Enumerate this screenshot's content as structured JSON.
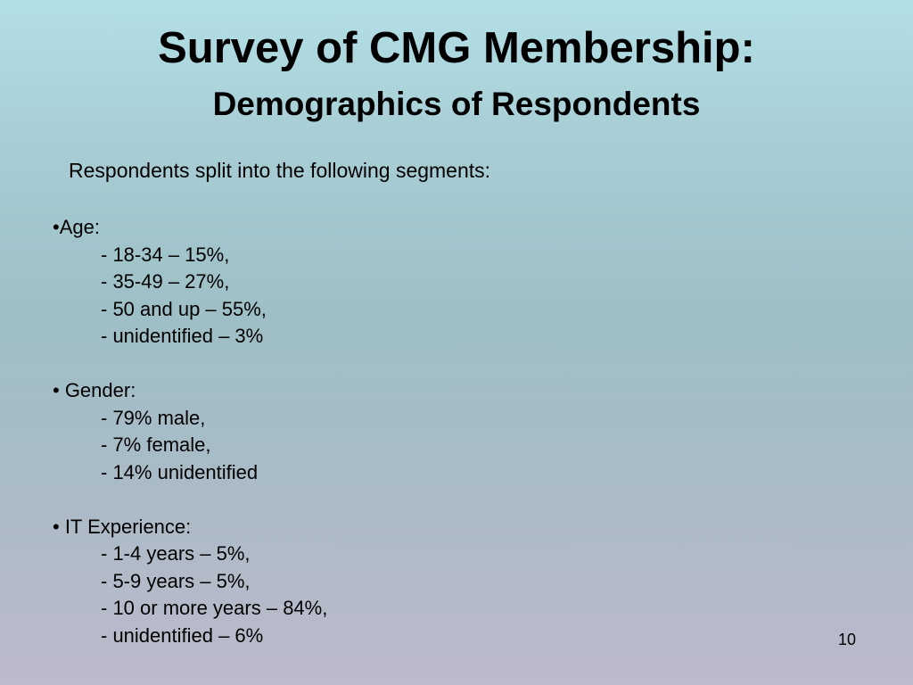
{
  "slide": {
    "title": "Survey of CMG Membership:",
    "subtitle": "Demographics of Respondents",
    "intro": "Respondents split into the following segments:",
    "sections": [
      {
        "heading": "•Age:",
        "items": [
          "- 18-34 – 15%,",
          "- 35-49 – 27%,",
          "- 50 and up – 55%,",
          "- unidentified – 3%"
        ]
      },
      {
        "heading": "• Gender:",
        "items": [
          "- 79% male,",
          "- 7% female,",
          "- 14% unidentified"
        ]
      },
      {
        "heading": "• IT Experience:",
        "items": [
          "- 1-4 years – 5%,",
          "- 5-9 years – 5%,",
          "- 10 or more years – 84%,",
          "- unidentified – 6%"
        ]
      }
    ],
    "page_number": "10"
  }
}
